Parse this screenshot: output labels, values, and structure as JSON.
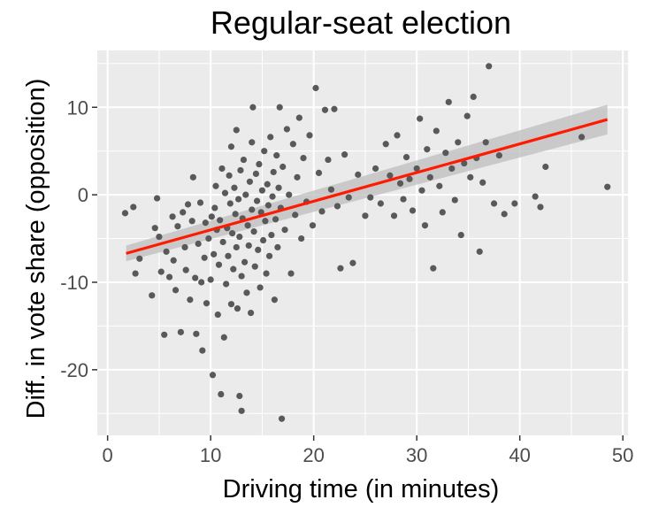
{
  "chart_data": {
    "type": "scatter",
    "title": "Regular-seat election",
    "xlabel": "Driving time (in minutes)",
    "ylabel": "Diff. in vote share (opposition)",
    "xlim": [
      -1,
      50.5
    ],
    "ylim": [
      -27.5,
      16.5
    ],
    "xticks": [
      0,
      10,
      20,
      30,
      40,
      50
    ],
    "xtick_labels": [
      "0",
      "10",
      "20",
      "30",
      "40",
      "50"
    ],
    "yticks": [
      -20,
      -10,
      0,
      10
    ],
    "ytick_labels": [
      "-20",
      "-10",
      "0",
      "10"
    ],
    "grid": true,
    "legend": "none",
    "colors": {
      "panel": "#ebebeb",
      "grid": "#ffffff",
      "points": "#595959",
      "fit_line": "#ff1a00",
      "ci_band": "#bdbdbd"
    },
    "fit": {
      "method": "linear",
      "x": [
        1.8,
        48.5
      ],
      "y": [
        -6.7,
        8.6
      ],
      "ci_lower": [
        -7.6,
        6.9
      ],
      "ci_upper": [
        -5.8,
        10.3
      ]
    },
    "points": [
      [
        1.7,
        -2.1
      ],
      [
        2.5,
        -1.4
      ],
      [
        2.7,
        -9.0
      ],
      [
        3.1,
        -7.3
      ],
      [
        4.3,
        -11.5
      ],
      [
        4.6,
        -3.8
      ],
      [
        4.8,
        -0.4
      ],
      [
        5.0,
        -4.8
      ],
      [
        5.2,
        -8.8
      ],
      [
        5.5,
        -16.0
      ],
      [
        5.7,
        -6.5
      ],
      [
        6.0,
        -9.4
      ],
      [
        6.3,
        -2.5
      ],
      [
        6.4,
        -7.5
      ],
      [
        6.6,
        -10.9
      ],
      [
        6.8,
        -3.6
      ],
      [
        7.1,
        -15.7
      ],
      [
        7.3,
        -2.0
      ],
      [
        7.5,
        -6.0
      ],
      [
        7.6,
        -8.6
      ],
      [
        7.8,
        -1.1
      ],
      [
        8.0,
        -12.0
      ],
      [
        8.2,
        -3.0
      ],
      [
        8.3,
        2.0
      ],
      [
        8.5,
        -9.5
      ],
      [
        8.6,
        -15.9
      ],
      [
        8.8,
        -5.6
      ],
      [
        9.0,
        -0.9
      ],
      [
        9.1,
        -10.0
      ],
      [
        9.2,
        -17.8
      ],
      [
        9.4,
        -7.2
      ],
      [
        9.5,
        -3.2
      ],
      [
        9.6,
        -12.4
      ],
      [
        9.8,
        -5.0
      ],
      [
        10.0,
        -9.7
      ],
      [
        10.1,
        -2.5
      ],
      [
        10.2,
        -20.6
      ],
      [
        10.3,
        -6.8
      ],
      [
        10.4,
        -1.5
      ],
      [
        10.5,
        1.0
      ],
      [
        10.6,
        -4.0
      ],
      [
        10.7,
        -13.7
      ],
      [
        10.8,
        -8.0
      ],
      [
        10.9,
        -2.9
      ],
      [
        11.0,
        -22.8
      ],
      [
        11.1,
        3.0
      ],
      [
        11.2,
        -5.4
      ],
      [
        11.3,
        -16.3
      ],
      [
        11.4,
        0.2
      ],
      [
        11.5,
        -10.2
      ],
      [
        11.6,
        -3.8
      ],
      [
        11.7,
        -7.0
      ],
      [
        11.8,
        2.2
      ],
      [
        11.9,
        -1.0
      ],
      [
        12.0,
        5.5
      ],
      [
        12.0,
        -12.5
      ],
      [
        12.1,
        -4.4
      ],
      [
        12.2,
        -8.5
      ],
      [
        12.3,
        0.8
      ],
      [
        12.4,
        -2.2
      ],
      [
        12.5,
        -6.0
      ],
      [
        12.5,
        7.4
      ],
      [
        12.6,
        -13.0
      ],
      [
        12.7,
        -0.5
      ],
      [
        12.8,
        -23.0
      ],
      [
        12.8,
        -4.8
      ],
      [
        12.9,
        2.8
      ],
      [
        13.0,
        -9.3
      ],
      [
        13.0,
        -24.7
      ],
      [
        13.1,
        -2.7
      ],
      [
        13.2,
        4.0
      ],
      [
        13.3,
        -7.7
      ],
      [
        13.4,
        0.0
      ],
      [
        13.5,
        -11.2
      ],
      [
        13.6,
        -3.5
      ],
      [
        13.7,
        -5.8
      ],
      [
        13.8,
        1.5
      ],
      [
        13.9,
        -13.5
      ],
      [
        14.0,
        -1.7
      ],
      [
        14.0,
        6.0
      ],
      [
        14.1,
        10.0
      ],
      [
        14.2,
        -4.2
      ],
      [
        14.3,
        -8.2
      ],
      [
        14.4,
        2.4
      ],
      [
        14.5,
        -0.7
      ],
      [
        14.6,
        -6.3
      ],
      [
        14.7,
        3.5
      ],
      [
        14.8,
        -10.6
      ],
      [
        14.9,
        -2.0
      ],
      [
        15.0,
        0.5
      ],
      [
        15.1,
        -5.2
      ],
      [
        15.2,
        5.0
      ],
      [
        15.3,
        -3.0
      ],
      [
        15.4,
        -9.0
      ],
      [
        15.5,
        1.2
      ],
      [
        15.6,
        -1.2
      ],
      [
        15.7,
        -7.0
      ],
      [
        15.8,
        6.6
      ],
      [
        15.9,
        -4.6
      ],
      [
        16.0,
        -0.2
      ],
      [
        16.1,
        2.6
      ],
      [
        16.2,
        -12.0
      ],
      [
        16.3,
        -2.8
      ],
      [
        16.4,
        4.5
      ],
      [
        16.5,
        -6.0
      ],
      [
        16.6,
        0.8
      ],
      [
        16.7,
        10.0
      ],
      [
        16.8,
        -1.5
      ],
      [
        16.9,
        -25.6
      ],
      [
        17.0,
        3.2
      ],
      [
        17.2,
        -4.0
      ],
      [
        17.4,
        7.5
      ],
      [
        17.6,
        0.0
      ],
      [
        17.8,
        -9.0
      ],
      [
        18.0,
        5.8
      ],
      [
        18.2,
        -2.3
      ],
      [
        18.4,
        2.0
      ],
      [
        18.6,
        8.8
      ],
      [
        18.8,
        -5.0
      ],
      [
        19.0,
        4.2
      ],
      [
        19.3,
        -0.8
      ],
      [
        19.6,
        6.8
      ],
      [
        19.9,
        -3.5
      ],
      [
        20.2,
        12.2
      ],
      [
        20.5,
        2.5
      ],
      [
        20.8,
        -1.9
      ],
      [
        21.1,
        9.7
      ],
      [
        21.4,
        4.0
      ],
      [
        21.7,
        0.6
      ],
      [
        22.0,
        9.8
      ],
      [
        22.3,
        -1.3
      ],
      [
        22.6,
        -8.4
      ],
      [
        23.0,
        4.6
      ],
      [
        23.4,
        -0.3
      ],
      [
        23.8,
        -7.8
      ],
      [
        24.3,
        2.3
      ],
      [
        25.0,
        -2.4
      ],
      [
        25.5,
        -0.3
      ],
      [
        26.0,
        3.0
      ],
      [
        26.5,
        -1.0
      ],
      [
        27.0,
        5.8
      ],
      [
        27.4,
        2.2
      ],
      [
        27.8,
        -2.4
      ],
      [
        28.1,
        6.8
      ],
      [
        28.4,
        1.3
      ],
      [
        28.7,
        -0.5
      ],
      [
        29.0,
        4.3
      ],
      [
        29.3,
        1.8
      ],
      [
        29.6,
        -1.8
      ],
      [
        30.0,
        3.0
      ],
      [
        30.3,
        8.7
      ],
      [
        30.5,
        0.5
      ],
      [
        30.8,
        -3.5
      ],
      [
        31.0,
        5.2
      ],
      [
        31.3,
        2.0
      ],
      [
        31.6,
        -8.4
      ],
      [
        31.9,
        7.3
      ],
      [
        32.2,
        1.0
      ],
      [
        32.5,
        -2.0
      ],
      [
        32.8,
        4.8
      ],
      [
        33.1,
        10.6
      ],
      [
        33.4,
        3.0
      ],
      [
        33.7,
        -0.6
      ],
      [
        34.0,
        6.0
      ],
      [
        34.3,
        -4.6
      ],
      [
        34.6,
        3.6
      ],
      [
        34.9,
        9.0
      ],
      [
        35.2,
        2.0
      ],
      [
        35.5,
        11.2
      ],
      [
        35.8,
        4.2
      ],
      [
        36.1,
        -6.5
      ],
      [
        36.4,
        1.4
      ],
      [
        36.7,
        6.0
      ],
      [
        37.0,
        14.7
      ],
      [
        37.5,
        -1.0
      ],
      [
        38.0,
        4.5
      ],
      [
        38.5,
        -2.2
      ],
      [
        39.5,
        -1.0
      ],
      [
        41.5,
        -0.2
      ],
      [
        42.0,
        -1.4
      ],
      [
        42.5,
        3.2
      ],
      [
        46.0,
        6.6
      ],
      [
        48.5,
        0.9
      ]
    ]
  }
}
